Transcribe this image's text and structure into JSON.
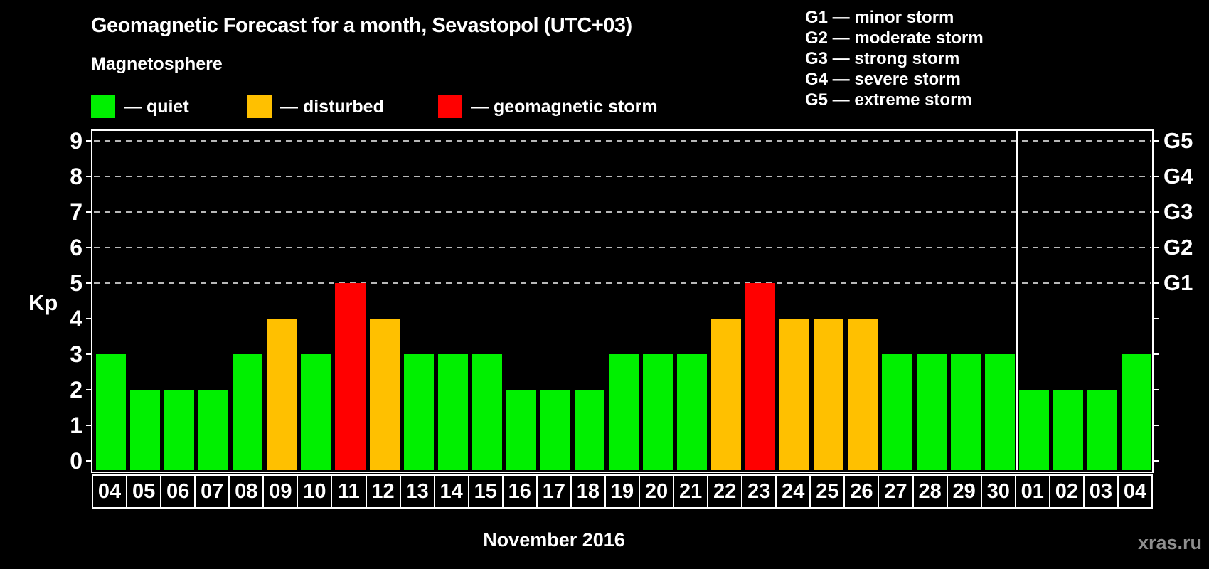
{
  "page": {
    "background": "#000000",
    "watermark": "xras.ru"
  },
  "header": {
    "title": "Geomagnetic Forecast for a month, Sevastopol (UTC+03)",
    "subtitle": "Magnetosphere"
  },
  "legend": {
    "items": [
      {
        "label": "— quiet",
        "status": "quiet",
        "color": "#00f000"
      },
      {
        "label": "— disturbed",
        "status": "disturbed",
        "color": "#ffc000"
      },
      {
        "label": "— geomagnetic storm",
        "status": "storm",
        "color": "#ff0000"
      }
    ]
  },
  "g_legend": [
    "G1 — minor storm",
    "G2 — moderate storm",
    "G3 — strong storm",
    "G4 — severe storm",
    "G5 — extreme storm"
  ],
  "axes": {
    "y_label": "Kp",
    "y_ticks": [
      "0",
      "1",
      "2",
      "3",
      "4",
      "5",
      "6",
      "7",
      "8",
      "9"
    ],
    "right_ticks": [
      "G1",
      "G2",
      "G3",
      "G4",
      "G5"
    ],
    "x_title": "November 2016"
  },
  "chart_data": {
    "type": "bar",
    "title": "Geomagnetic Forecast for a month, Sevastopol (UTC+03)",
    "xlabel": "November 2016",
    "ylabel": "Kp",
    "ylim": [
      0,
      9
    ],
    "grid": "horizontal dashed lines at Kp 5,6,7,8,9",
    "legend_position": "top-left",
    "categories": [
      "04",
      "05",
      "06",
      "07",
      "08",
      "09",
      "10",
      "11",
      "12",
      "13",
      "14",
      "15",
      "16",
      "17",
      "18",
      "19",
      "20",
      "21",
      "22",
      "23",
      "24",
      "25",
      "26",
      "27",
      "28",
      "29",
      "30",
      "01",
      "02",
      "03",
      "04"
    ],
    "values": [
      3,
      2,
      2,
      2,
      3,
      4,
      3,
      5,
      4,
      3,
      3,
      3,
      2,
      2,
      2,
      3,
      3,
      3,
      4,
      5,
      4,
      4,
      4,
      3,
      3,
      3,
      3,
      2,
      2,
      2,
      3
    ],
    "statuses": [
      "quiet",
      "quiet",
      "quiet",
      "quiet",
      "quiet",
      "disturbed",
      "quiet",
      "storm",
      "disturbed",
      "quiet",
      "quiet",
      "quiet",
      "quiet",
      "quiet",
      "quiet",
      "quiet",
      "quiet",
      "quiet",
      "disturbed",
      "storm",
      "disturbed",
      "disturbed",
      "disturbed",
      "quiet",
      "quiet",
      "quiet",
      "quiet",
      "quiet",
      "quiet",
      "quiet",
      "quiet"
    ],
    "colors": {
      "quiet": "#00f000",
      "disturbed": "#ffc000",
      "storm": "#ff0000"
    },
    "g_levels": {
      "G1": 5,
      "G2": 6,
      "G3": 7,
      "G4": 8,
      "G5": 9
    },
    "november_day_count": 27,
    "month_separator_after_category_index": 26
  }
}
